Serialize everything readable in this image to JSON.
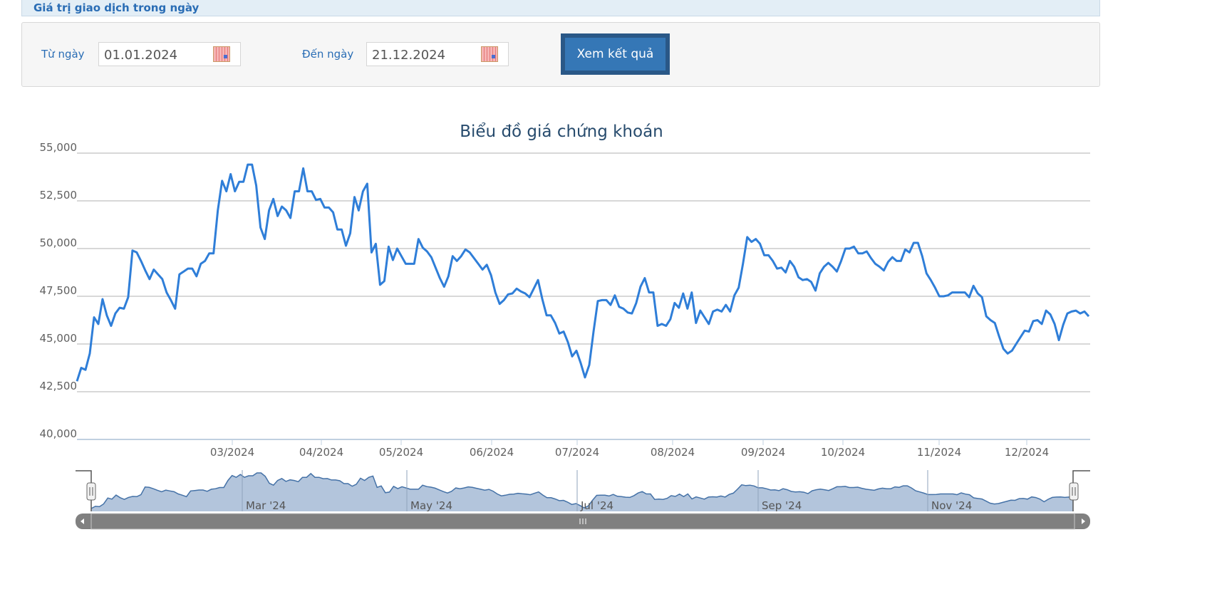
{
  "header": {
    "title": "Giá trị giao dịch trong ngày"
  },
  "filter": {
    "from_label": "Từ ngày",
    "from_value": "01.01.2024",
    "to_label": "Đến ngày",
    "to_value": "21.12.2024",
    "submit_label": "Xem kết quả",
    "calendar_icon": "calendar-icon"
  },
  "colors": {
    "line": "#2f7ed8",
    "navigator_fill": "#b3c5dc",
    "navigator_line": "#4572a7",
    "button": "#3577b6",
    "title": "#274b6d"
  },
  "chart_data": {
    "type": "line",
    "title": "Biểu đồ giá chứng khoán",
    "ylim": [
      40000,
      55000
    ],
    "y_ticks": [
      "40,000",
      "42,500",
      "45,000",
      "47,500",
      "50,000",
      "52,500",
      "55,000"
    ],
    "x_ticks": [
      "03/2024",
      "04/2024",
      "05/2024",
      "06/2024",
      "07/2024",
      "08/2024",
      "09/2024",
      "10/2024",
      "11/2024",
      "12/2024"
    ],
    "grid": true,
    "navigator_labels": [
      "Mar '24",
      "May '24",
      "Jul '24",
      "Sep '24",
      "Nov '24"
    ],
    "values": [
      43050,
      43750,
      43650,
      44500,
      46400,
      46050,
      47350,
      46500,
      45950,
      46600,
      46900,
      46850,
      47450,
      49900,
      49800,
      49350,
      48850,
      48400,
      48900,
      48650,
      48400,
      47700,
      47300,
      46850,
      48650,
      48800,
      48950,
      48950,
      48550,
      49200,
      49350,
      49750,
      49750,
      52000,
      53550,
      53000,
      53900,
      53000,
      53500,
      53500,
      54400,
      54400,
      53300,
      51100,
      50500,
      52000,
      52600,
      51700,
      52200,
      52000,
      51600,
      53000,
      53000,
      54200,
      53000,
      53000,
      52550,
      52600,
      52150,
      52150,
      51900,
      51000,
      51000,
      50150,
      50800,
      52700,
      52000,
      53000,
      53400,
      49800,
      50250,
      48100,
      48300,
      50100,
      49400,
      50000,
      49600,
      49200,
      49200,
      49200,
      50500,
      50050,
      49850,
      49550,
      49000,
      48450,
      48000,
      48550,
      49600,
      49350,
      49600,
      49950,
      49800,
      49500,
      49200,
      48900,
      49150,
      48600,
      47700,
      47100,
      47300,
      47600,
      47650,
      47900,
      47750,
      47650,
      47450,
      47900,
      48350,
      47350,
      46500,
      46500,
      46100,
      45550,
      45650,
      45100,
      44350,
      44650,
      44000,
      43250,
      43900,
      45650,
      47250,
      47300,
      47300,
      47050,
      47550,
      46950,
      46850,
      46650,
      46600,
      47150,
      48000,
      48450,
      47700,
      47700,
      45950,
      46050,
      45950,
      46300,
      47150,
      46900,
      47650,
      46850,
      47700,
      46100,
      46750,
      46400,
      46050,
      46700,
      46800,
      46700,
      47050,
      46700,
      47550,
      47950,
      49200,
      50600,
      50350,
      50500,
      50250,
      49650,
      49650,
      49350,
      48950,
      49000,
      48750,
      49350,
      49050,
      48500,
      48350,
      48400,
      48250,
      47800,
      48700,
      49050,
      49250,
      49050,
      48800,
      49350,
      50000,
      50000,
      50100,
      49750,
      49750,
      49850,
      49500,
      49200,
      49050,
      48850,
      49300,
      49550,
      49350,
      49350,
      49950,
      49800,
      50300,
      50300,
      49600,
      48700,
      48350,
      47950,
      47500,
      47500,
      47550,
      47700,
      47700,
      47700,
      47700,
      47450,
      48050,
      47650,
      47450,
      46450,
      46250,
      46100,
      45400,
      44750,
      44500,
      44650,
      45000,
      45350,
      45700,
      45650,
      46200,
      46250,
      46050,
      46750,
      46550,
      46050,
      45200,
      46000,
      46600,
      46700,
      46750,
      46600,
      46700,
      46450
    ]
  }
}
